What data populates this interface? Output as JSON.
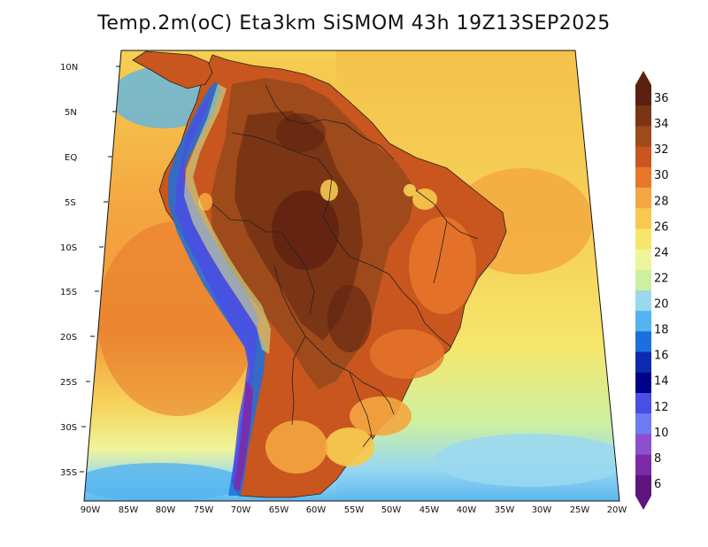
{
  "title": "Temp.2m(oC) Eta3km SiSMOM 43h 19Z13SEP2025",
  "map": {
    "variable": "2 m temperature",
    "units": "oC",
    "model": "Eta3km SiSMOM",
    "forecast": "43h",
    "valid_time": "19Z13SEP2025",
    "lat_ticks": [
      "10N",
      "5N",
      "EQ",
      "5S",
      "10S",
      "15S",
      "20S",
      "25S",
      "30S",
      "35S"
    ],
    "lon_ticks": [
      "90W",
      "85W",
      "80W",
      "75W",
      "70W",
      "65W",
      "60W",
      "55W",
      "50W",
      "45W",
      "40W",
      "35W",
      "30W",
      "25W",
      "20W"
    ]
  },
  "colorbar": {
    "labels": [
      "36",
      "34",
      "32",
      "30",
      "28",
      "26",
      "24",
      "22",
      "20",
      "18",
      "16",
      "14",
      "12",
      "10",
      "8",
      "6"
    ],
    "colors": [
      "#5a2010",
      "#7a3514",
      "#9e4a1a",
      "#c8561e",
      "#e8762a",
      "#f4a640",
      "#f7c94e",
      "#f6e66c",
      "#eef59a",
      "#cdf0a0",
      "#9ad8f0",
      "#54b4ef",
      "#1d6fe0",
      "#0e2ab0",
      "#00008a",
      "#4a4ee6",
      "#6e7cf2",
      "#8e4fcf",
      "#7d2aa8",
      "#5e157e"
    ]
  },
  "colors": {
    "ocean_warm": "#f4a640",
    "ocean_hot": "#e8762a",
    "continent_base": "#c8561e",
    "amazon": "#7a3514",
    "andes": "#3b3fd0",
    "border": "#222222"
  }
}
